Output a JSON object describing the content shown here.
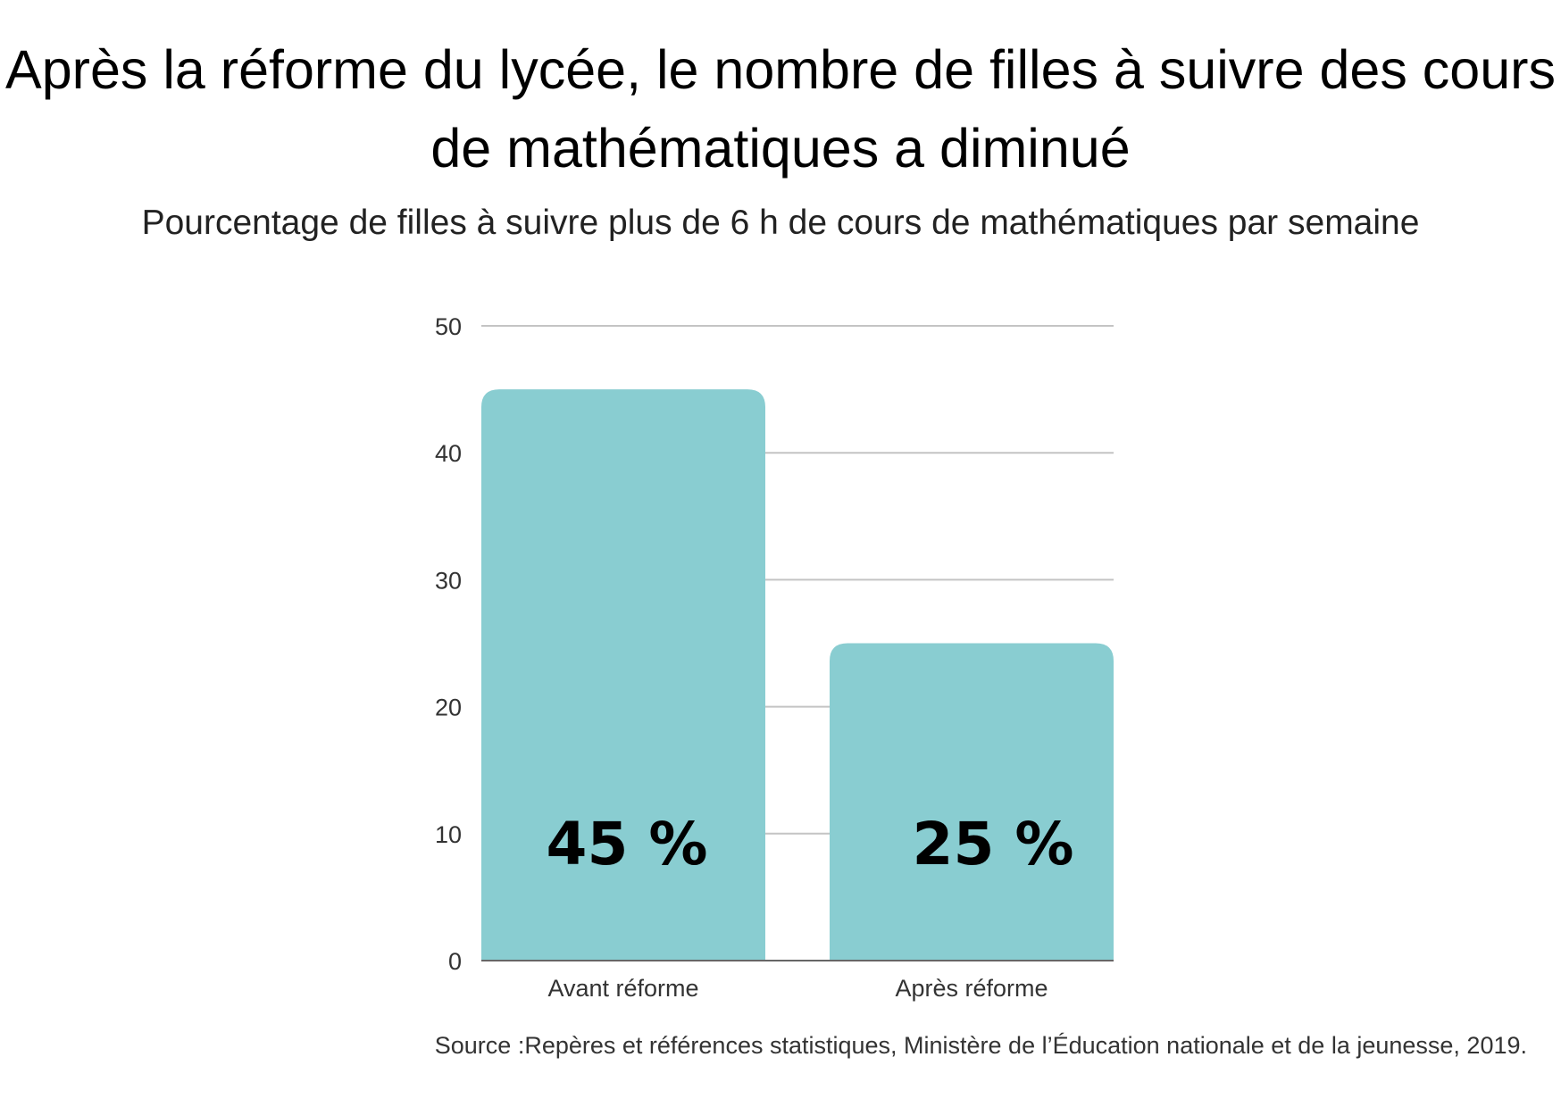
{
  "chart_data": {
    "type": "bar",
    "title": "Après la réforme du lycée, le nombre de filles à suivre des cours de mathématiques a diminué",
    "subtitle": "Pourcentage de filles à suivre plus de 6 h de cours de mathématiques par semaine",
    "categories": [
      "Avant réforme",
      "Après réforme"
    ],
    "values": [
      45,
      25
    ],
    "data_labels": [
      "45 %",
      "25 %"
    ],
    "xlabel": "",
    "ylabel": "",
    "ylim": [
      0,
      50
    ],
    "yticks": [
      0,
      10,
      20,
      30,
      40,
      50
    ],
    "grid": true,
    "bar_color": "#89cdd1",
    "source": "Source :Repères et références statistiques, Ministère de l’Éducation nationale et de la jeunesse, 2019."
  }
}
